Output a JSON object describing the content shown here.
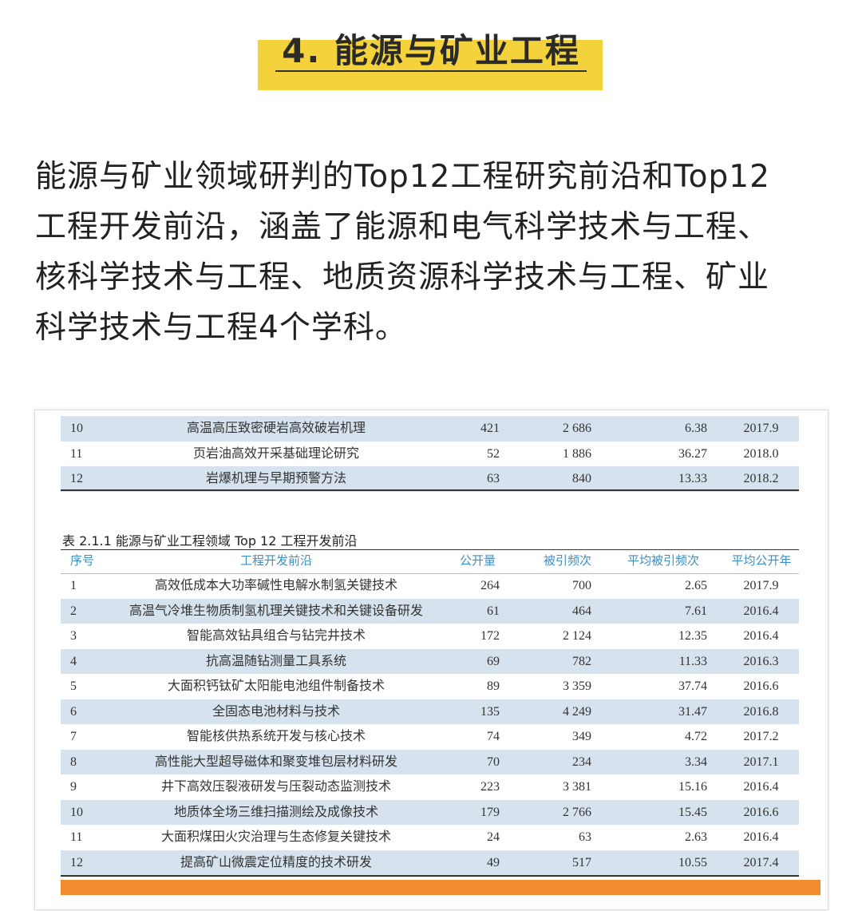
{
  "heading": "4. 能源与矿业工程",
  "paragraph_lines": [
    "能源与矿业领域研判的Top12工程研究前沿和Top12",
    "工程开发前沿，涵盖了能源和电气科学技术与工程、",
    "核科学技术与工程、地质资源科学技术与工程、矿业",
    "科学技术与工程4个学科。"
  ],
  "research_table_tail": [
    {
      "no": "10",
      "topic": "高温高压致密硬岩高效破岩机理",
      "count": "421",
      "cites": "2 686",
      "avg": "6.38",
      "year": "2017.9"
    },
    {
      "no": "11",
      "topic": "页岩油高效开采基础理论研究",
      "count": "52",
      "cites": "1 886",
      "avg": "36.27",
      "year": "2018.0"
    },
    {
      "no": "12",
      "topic": "岩爆机理与早期预警方法",
      "count": "63",
      "cites": "840",
      "avg": "13.33",
      "year": "2018.2"
    }
  ],
  "dev_table": {
    "caption": "表 2.1.1   能源与矿业工程领域 Top 12 工程开发前沿",
    "headers": [
      "序号",
      "工程开发前沿",
      "公开量",
      "被引频次",
      "平均被引频次",
      "平均公开年"
    ],
    "rows": [
      {
        "no": "1",
        "topic": "高效低成本大功率碱性电解水制氢关键技术",
        "count": "264",
        "cites": "700",
        "avg": "2.65",
        "year": "2017.9"
      },
      {
        "no": "2",
        "topic": "高温气冷堆生物质制氢机理关键技术和关键设备研发",
        "count": "61",
        "cites": "464",
        "avg": "7.61",
        "year": "2016.4"
      },
      {
        "no": "3",
        "topic": "智能高效钻具组合与钻完井技术",
        "count": "172",
        "cites": "2 124",
        "avg": "12.35",
        "year": "2016.4"
      },
      {
        "no": "4",
        "topic": "抗高温随钻测量工具系统",
        "count": "69",
        "cites": "782",
        "avg": "11.33",
        "year": "2016.3"
      },
      {
        "no": "5",
        "topic": "大面积钙钛矿太阳能电池组件制备技术",
        "count": "89",
        "cites": "3 359",
        "avg": "37.74",
        "year": "2016.6"
      },
      {
        "no": "6",
        "topic": "全固态电池材料与技术",
        "count": "135",
        "cites": "4 249",
        "avg": "31.47",
        "year": "2016.8"
      },
      {
        "no": "7",
        "topic": "智能核供热系统开发与核心技术",
        "count": "74",
        "cites": "349",
        "avg": "4.72",
        "year": "2017.2"
      },
      {
        "no": "8",
        "topic": "高性能大型超导磁体和聚变堆包层材料研发",
        "count": "70",
        "cites": "234",
        "avg": "3.34",
        "year": "2017.1"
      },
      {
        "no": "9",
        "topic": "井下高效压裂液研发与压裂动态监测技术",
        "count": "223",
        "cites": "3 381",
        "avg": "15.16",
        "year": "2016.4"
      },
      {
        "no": "10",
        "topic": "地质体全场三维扫描测绘及成像技术",
        "count": "179",
        "cites": "2 766",
        "avg": "15.45",
        "year": "2016.6"
      },
      {
        "no": "11",
        "topic": "大面积煤田火灾治理与生态修复关键技术",
        "count": "24",
        "cites": "63",
        "avg": "2.63",
        "year": "2016.4"
      },
      {
        "no": "12",
        "topic": "提高矿山微震定位精度的技术研发",
        "count": "49",
        "cites": "517",
        "avg": "10.55",
        "year": "2017.4"
      }
    ]
  },
  "colors": {
    "title_highlight": "#f3d23c",
    "row_stripe": "#d6e3ef",
    "header_text": "#3b8fc4",
    "bottom_bar": "#f28a30"
  }
}
